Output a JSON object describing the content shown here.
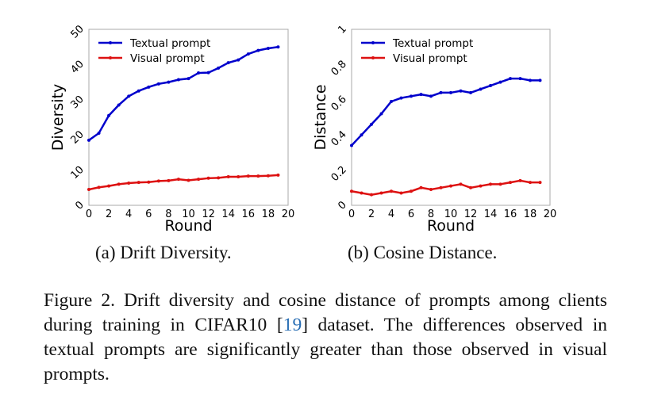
{
  "chart_data": [
    {
      "type": "line",
      "xlabel": "Round",
      "ylabel": "Diversity",
      "xlim": [
        0,
        20
      ],
      "ylim": [
        0,
        50
      ],
      "xticks": [
        "0",
        "2",
        "4",
        "6",
        "8",
        "10",
        "12",
        "14",
        "16",
        "18",
        "20"
      ],
      "yticks": [
        "0",
        "10",
        "20",
        "30",
        "40",
        "50"
      ],
      "legend": "top-left",
      "x": [
        0,
        1,
        2,
        3,
        4,
        5,
        6,
        7,
        8,
        9,
        10,
        11,
        12,
        13,
        14,
        15,
        16,
        17,
        18,
        19
      ],
      "series": [
        {
          "name": "Textual prompt",
          "color": "#0000cc",
          "values": [
            18.5,
            20.5,
            25.5,
            28.5,
            31,
            32.5,
            33.6,
            34.5,
            35,
            35.7,
            36,
            37.6,
            37.7,
            39,
            40.5,
            41.3,
            43,
            44,
            44.6,
            45
          ]
        },
        {
          "name": "Visual prompt",
          "color": "#dd1111",
          "values": [
            4.5,
            5.1,
            5.5,
            6,
            6.3,
            6.5,
            6.6,
            6.9,
            7,
            7.4,
            7.1,
            7.4,
            7.7,
            7.8,
            8.1,
            8.1,
            8.3,
            8.3,
            8.4,
            8.6
          ]
        }
      ]
    },
    {
      "type": "line",
      "xlabel": "Round",
      "ylabel": "Distance",
      "xlim": [
        0,
        20
      ],
      "ylim": [
        0,
        1
      ],
      "xticks": [
        "0",
        "2",
        "4",
        "6",
        "8",
        "10",
        "12",
        "14",
        "16",
        "18",
        "20"
      ],
      "yticks": [
        "0",
        "0.2",
        "0.4",
        "0.6",
        "0.8",
        "1"
      ],
      "legend": "top-left",
      "x": [
        0,
        1,
        2,
        3,
        4,
        5,
        6,
        7,
        8,
        9,
        10,
        11,
        12,
        13,
        14,
        15,
        16,
        17,
        18,
        19
      ],
      "series": [
        {
          "name": "Textual prompt",
          "color": "#0000cc",
          "values": [
            0.34,
            0.4,
            0.46,
            0.52,
            0.59,
            0.61,
            0.62,
            0.63,
            0.62,
            0.64,
            0.64,
            0.65,
            0.64,
            0.66,
            0.68,
            0.7,
            0.72,
            0.72,
            0.71,
            0.71
          ]
        },
        {
          "name": "Visual prompt",
          "color": "#dd1111",
          "values": [
            0.08,
            0.07,
            0.06,
            0.07,
            0.08,
            0.07,
            0.08,
            0.1,
            0.09,
            0.1,
            0.11,
            0.12,
            0.1,
            0.11,
            0.12,
            0.12,
            0.13,
            0.14,
            0.13,
            0.13
          ]
        }
      ]
    }
  ],
  "subcaptions": [
    "(a) Drift Diversity.",
    "(b) Cosine Distance."
  ],
  "caption": {
    "prefix": "Figure 2.  Drift diversity and cosine distance of prompts among clients during training in CIFAR10 [",
    "citation": "19",
    "suffix": "] dataset.  The differences observed in textual prompts are significantly greater than those observed in visual prompts."
  }
}
